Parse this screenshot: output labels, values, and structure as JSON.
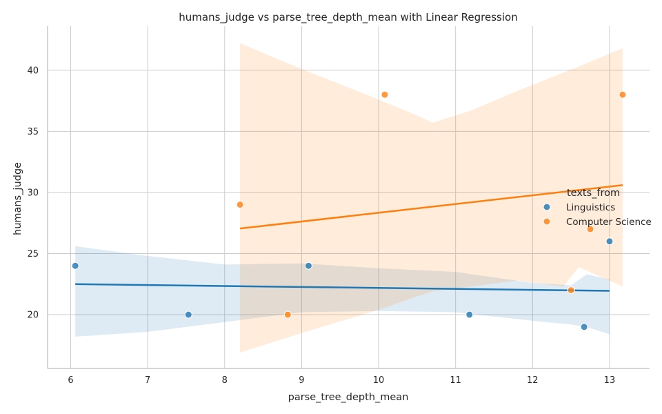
{
  "chart_data": {
    "type": "scatter",
    "title": "humans_judge vs parse_tree_depth_mean with Linear Regression",
    "xlabel": "parse_tree_depth_mean",
    "ylabel": "humans_judge",
    "xlim": [
      5.7,
      13.52
    ],
    "ylim": [
      15.6,
      43.6
    ],
    "xticks": [
      6,
      7,
      8,
      9,
      10,
      11,
      12,
      13
    ],
    "yticks": [
      20,
      25,
      30,
      35,
      40
    ],
    "grid": true,
    "legend": {
      "title": "texts_from",
      "position": "center-right"
    },
    "series": [
      {
        "name": "Linguistics",
        "color": "#1f77b4",
        "points": [
          {
            "x": 6.06,
            "y": 24
          },
          {
            "x": 7.53,
            "y": 20
          },
          {
            "x": 9.09,
            "y": 24
          },
          {
            "x": 11.18,
            "y": 20
          },
          {
            "x": 12.67,
            "y": 19
          },
          {
            "x": 13.0,
            "y": 26
          }
        ],
        "regression": [
          {
            "x": 6.06,
            "y": 22.5
          },
          {
            "x": 13.0,
            "y": 21.95
          }
        ],
        "ci_band": [
          {
            "x": 6.06,
            "lo": 18.2,
            "hi": 25.6
          },
          {
            "x": 7.0,
            "lo": 18.6,
            "hi": 24.8
          },
          {
            "x": 8.0,
            "lo": 19.4,
            "hi": 24.1
          },
          {
            "x": 9.0,
            "lo": 20.2,
            "hi": 24.2
          },
          {
            "x": 10.0,
            "lo": 20.3,
            "hi": 23.8
          },
          {
            "x": 11.0,
            "lo": 20.2,
            "hi": 23.5
          },
          {
            "x": 12.0,
            "lo": 19.5,
            "hi": 22.6
          },
          {
            "x": 12.5,
            "lo": 19.2,
            "hi": 22.4
          },
          {
            "x": 12.7,
            "lo": 19.0,
            "hi": 23.3
          },
          {
            "x": 13.0,
            "lo": 18.4,
            "hi": 22.9
          }
        ]
      },
      {
        "name": "Computer Science",
        "color": "#ff7f0e",
        "points": [
          {
            "x": 8.2,
            "y": 29
          },
          {
            "x": 8.82,
            "y": 20
          },
          {
            "x": 10.08,
            "y": 38
          },
          {
            "x": 12.5,
            "y": 22
          },
          {
            "x": 12.75,
            "y": 27
          },
          {
            "x": 13.17,
            "y": 38
          }
        ],
        "regression": [
          {
            "x": 8.2,
            "y": 27.05
          },
          {
            "x": 13.17,
            "y": 30.6
          }
        ],
        "ci_band": [
          {
            "x": 8.2,
            "lo": 16.9,
            "hi": 42.2
          },
          {
            "x": 9.0,
            "lo": 18.5,
            "hi": 40.1
          },
          {
            "x": 10.0,
            "lo": 20.4,
            "hi": 37.6
          },
          {
            "x": 10.5,
            "lo": 21.5,
            "hi": 36.3
          },
          {
            "x": 10.7,
            "lo": 21.9,
            "hi": 35.7
          },
          {
            "x": 11.2,
            "lo": 22.3,
            "hi": 36.7
          },
          {
            "x": 11.8,
            "lo": 22.8,
            "hi": 38.3
          },
          {
            "x": 12.4,
            "lo": 22.3,
            "hi": 39.8
          },
          {
            "x": 12.6,
            "lo": 23.9,
            "hi": 40.3
          },
          {
            "x": 13.17,
            "lo": 22.3,
            "hi": 41.8
          }
        ]
      }
    ]
  }
}
